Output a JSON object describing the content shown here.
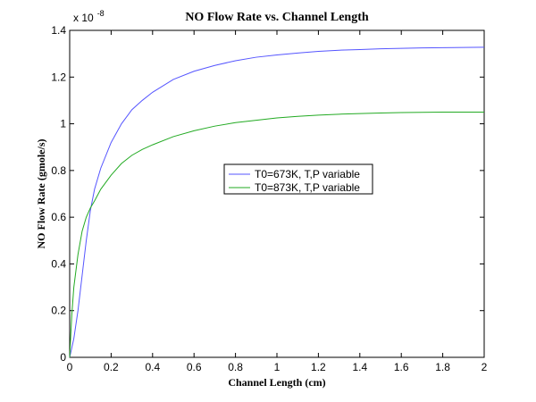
{
  "chart_data": {
    "type": "line",
    "title": "NO Flow Rate vs. Channel Length",
    "xlabel": "Channel Length (cm)",
    "ylabel": "NO Flow Rate (gmole/s)",
    "y_multiplier_base": "x 10",
    "y_multiplier_exp": "-8",
    "xlim": [
      0,
      2
    ],
    "ylim": [
      0,
      1.4
    ],
    "x_ticks": [
      0,
      0.2,
      0.4,
      0.6,
      0.8,
      1,
      1.2,
      1.4,
      1.6,
      1.8,
      2
    ],
    "x_tick_labels": [
      "0",
      "0.2",
      "0.4",
      "0.6",
      "0.8",
      "1",
      "1.2",
      "1.4",
      "1.6",
      "1.8",
      "2"
    ],
    "y_ticks": [
      0,
      0.2,
      0.4,
      0.6,
      0.8,
      1,
      1.2,
      1.4
    ],
    "y_tick_labels": [
      "0",
      "0.2",
      "0.4",
      "0.6",
      "0.8",
      "1",
      "1.2",
      "1.4"
    ],
    "grid": false,
    "legend_placement": "center-right",
    "series": [
      {
        "name": "T0=673K, T,P variable",
        "color": "#5555ff",
        "x": [
          0,
          0.02,
          0.04,
          0.06,
          0.08,
          0.1,
          0.12,
          0.15,
          0.2,
          0.25,
          0.3,
          0.35,
          0.4,
          0.5,
          0.6,
          0.7,
          0.8,
          0.9,
          1.0,
          1.1,
          1.2,
          1.3,
          1.4,
          1.5,
          1.6,
          1.7,
          1.8,
          1.9,
          2.0
        ],
        "y": [
          0,
          0.08,
          0.2,
          0.35,
          0.5,
          0.63,
          0.72,
          0.81,
          0.92,
          1.0,
          1.06,
          1.1,
          1.135,
          1.19,
          1.225,
          1.25,
          1.27,
          1.285,
          1.295,
          1.303,
          1.31,
          1.315,
          1.318,
          1.321,
          1.323,
          1.325,
          1.326,
          1.327,
          1.328
        ]
      },
      {
        "name": "T0=873K, T,P variable",
        "color": "#22aa22",
        "x": [
          0,
          0.01,
          0.02,
          0.04,
          0.06,
          0.08,
          0.1,
          0.12,
          0.15,
          0.2,
          0.25,
          0.3,
          0.35,
          0.4,
          0.5,
          0.6,
          0.7,
          0.8,
          0.9,
          1.0,
          1.1,
          1.2,
          1.3,
          1.4,
          1.5,
          1.6,
          1.7,
          1.8,
          1.9,
          2.0
        ],
        "y": [
          0,
          0.18,
          0.3,
          0.44,
          0.54,
          0.6,
          0.64,
          0.67,
          0.72,
          0.78,
          0.83,
          0.865,
          0.89,
          0.91,
          0.945,
          0.97,
          0.99,
          1.005,
          1.015,
          1.025,
          1.032,
          1.037,
          1.041,
          1.044,
          1.046,
          1.048,
          1.049,
          1.05,
          1.05,
          1.05
        ]
      }
    ]
  }
}
